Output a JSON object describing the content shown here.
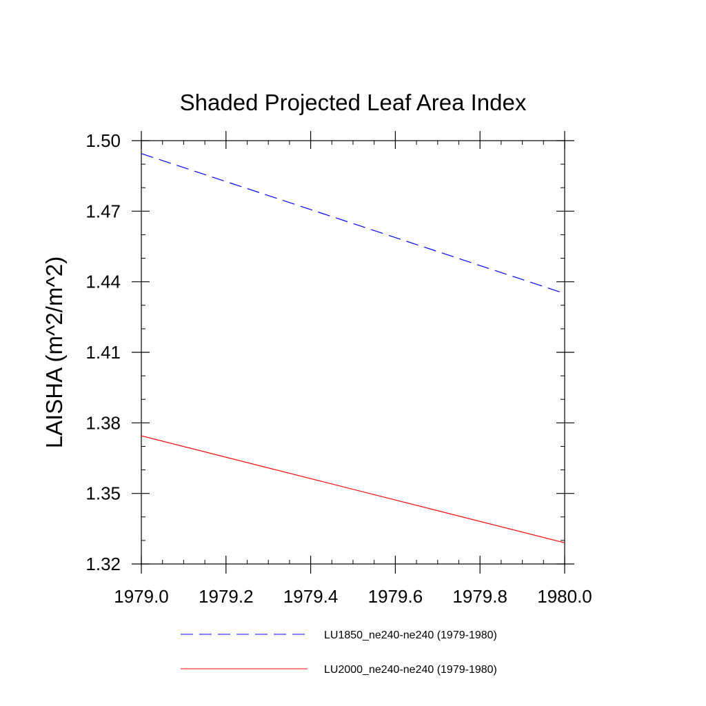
{
  "chart_data": {
    "type": "line",
    "title": "Shaded Projected Leaf Area Index",
    "xlabel": "",
    "ylabel": "LAISHA  (m^2/m^2)",
    "xlim": [
      1979.0,
      1980.0
    ],
    "ylim": [
      1.32,
      1.5
    ],
    "xticks": [
      1979.0,
      1979.2,
      1979.4,
      1979.6,
      1979.8,
      1980.0
    ],
    "xtick_labels": [
      "1979.0",
      "1979.2",
      "1979.4",
      "1979.6",
      "1979.8",
      "1980.0"
    ],
    "yticks": [
      1.32,
      1.35,
      1.38,
      1.41,
      1.44,
      1.47,
      1.5
    ],
    "ytick_labels": [
      "1.32",
      "1.35",
      "1.38",
      "1.41",
      "1.44",
      "1.47",
      "1.50"
    ],
    "grid": false,
    "legend_position": "bottom",
    "series": [
      {
        "name": "LU1850_ne240-ne240 (1979-1980)",
        "x": [
          1979.0,
          1980.0
        ],
        "values": [
          1.4945,
          1.435
        ],
        "color": "#0000ff",
        "dash": "dashed"
      },
      {
        "name": "LU2000_ne240-ne240 (1979-1980)",
        "x": [
          1979.0,
          1980.0
        ],
        "values": [
          1.3745,
          1.329
        ],
        "color": "#ff0000",
        "dash": "solid"
      }
    ]
  }
}
